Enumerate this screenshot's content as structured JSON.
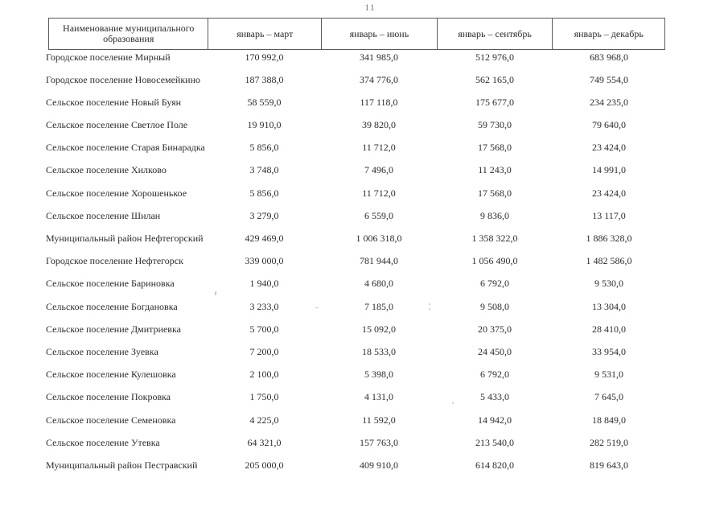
{
  "page": {
    "number": "11"
  },
  "table": {
    "header": {
      "name_column": "Наименование муниципального образования",
      "period_columns": [
        "январь – март",
        "январь – июнь",
        "январь – сентябрь",
        "январь – декабрь"
      ]
    },
    "rows": [
      {
        "name": "Городское поселение Мирный",
        "values": [
          "170 992,0",
          "341 985,0",
          "512 976,0",
          "683 968,0"
        ]
      },
      {
        "name": "Городское поселение Новосемейкино",
        "values": [
          "187 388,0",
          "374 776,0",
          "562 165,0",
          "749 554,0"
        ]
      },
      {
        "name": "Сельское поселение Новый Буян",
        "values": [
          "58 559,0",
          "117 118,0",
          "175 677,0",
          "234 235,0"
        ]
      },
      {
        "name": "Сельское поселение Светлое Поле",
        "values": [
          "19 910,0",
          "39 820,0",
          "59 730,0",
          "79 640,0"
        ]
      },
      {
        "name": "Сельское поселение Старая Бинарадка",
        "values": [
          "5 856,0",
          "11 712,0",
          "17 568,0",
          "23 424,0"
        ]
      },
      {
        "name": "Сельское поселение Хилково",
        "values": [
          "3 748,0",
          "7 496,0",
          "11 243,0",
          "14 991,0"
        ]
      },
      {
        "name": "Сельское поселение Хорошенькое",
        "values": [
          "5 856,0",
          "11 712,0",
          "17 568,0",
          "23 424,0"
        ]
      },
      {
        "name": "Сельское поселение Шилан",
        "values": [
          "3 279,0",
          "6 559,0",
          "9 836,0",
          "13 117,0"
        ]
      },
      {
        "name": "Муниципальный район Нефтегорский",
        "values": [
          "429 469,0",
          "1 006 318,0",
          "1 358 322,0",
          "1 886 328,0"
        ]
      },
      {
        "name": "Городское поселение Нефтегорск",
        "values": [
          "339 000,0",
          "781 944,0",
          "1 056 490,0",
          "1 482 586,0"
        ]
      },
      {
        "name": "Сельское поселение Бариновка",
        "values": [
          "1 940,0",
          "4 680,0",
          "6 792,0",
          "9 530,0"
        ]
      },
      {
        "name": "Сельское поселение Богдановка",
        "values": [
          "3 233,0",
          "7 185,0",
          "9 508,0",
          "13 304,0"
        ]
      },
      {
        "name": "Сельское поселение Дмитриевка",
        "values": [
          "5 700,0",
          "15 092,0",
          "20 375,0",
          "28 410,0"
        ]
      },
      {
        "name": "Сельское поселение Зуевка",
        "values": [
          "7 200,0",
          "18 533,0",
          "24 450,0",
          "33 954,0"
        ]
      },
      {
        "name": "Сельское поселение Кулешовка",
        "values": [
          "2 100,0",
          "5 398,0",
          "6 792,0",
          "9 531,0"
        ]
      },
      {
        "name": "Сельское поселение Покровка",
        "values": [
          "1 750,0",
          "4 131,0",
          "5 433,0",
          "7 645,0"
        ]
      },
      {
        "name": "Сельское поселение Семеновка",
        "values": [
          "4 225,0",
          "11 592,0",
          "14 942,0",
          "18 849,0"
        ]
      },
      {
        "name": "Сельское поселение Утевка",
        "values": [
          "64 321,0",
          "157 763,0",
          "213 540,0",
          "282 519,0"
        ]
      },
      {
        "name": "Муниципальный район Пестравский",
        "values": [
          "205 000,0",
          "409 910,0",
          "614 820,0",
          "819 643,0"
        ]
      }
    ]
  },
  "colors": {
    "text": "#2b2b2b",
    "border": "#5a5a5a",
    "page_number": "#7a7a7a",
    "background": "#ffffff"
  }
}
